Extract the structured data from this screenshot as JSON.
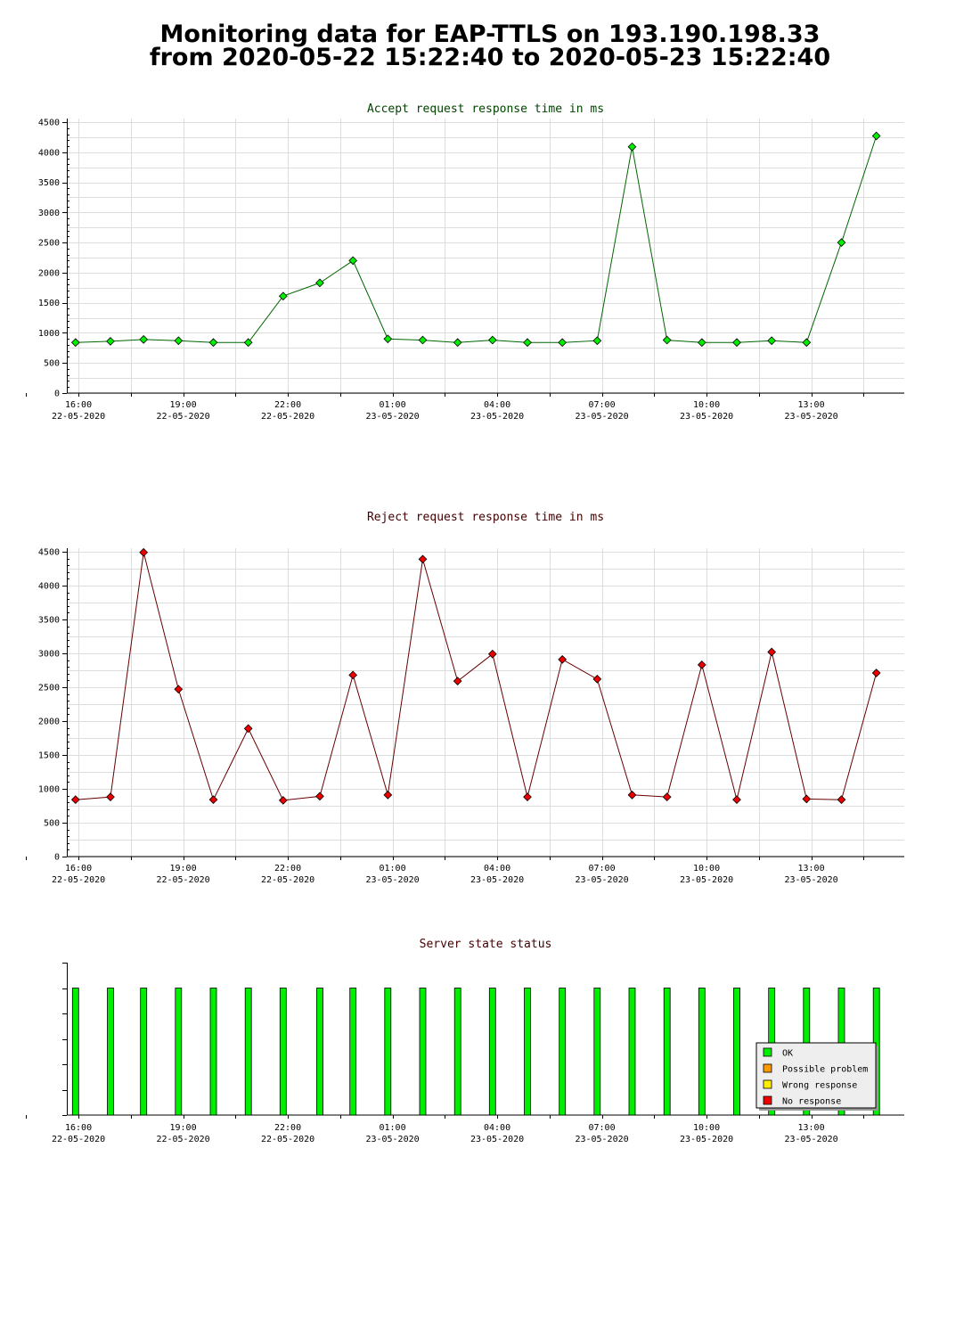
{
  "page": {
    "title_line1": "Monitoring data for EAP-TTLS on 193.190.198.33",
    "title_line2": "from 2020-05-22 15:22:40 to 2020-05-23 15:22:40"
  },
  "colors": {
    "accept_line": "#006600",
    "accept_marker": "#00ee00",
    "reject_line": "#660000",
    "reject_marker": "#ee0000",
    "status_ok": "#00ee00",
    "status_possible_problem": "#ff9900",
    "status_wrong_response": "#ffee00",
    "status_no_response": "#ee0000",
    "grid": "#dddddd",
    "accept_title": "#004400",
    "reject_title": "#440000",
    "status_title": "#440000"
  },
  "x_ticks": [
    {
      "time": "16:00",
      "date": "22-05-2020"
    },
    {
      "time": "19:00",
      "date": "22-05-2020"
    },
    {
      "time": "22:00",
      "date": "22-05-2020"
    },
    {
      "time": "01:00",
      "date": "23-05-2020"
    },
    {
      "time": "04:00",
      "date": "23-05-2020"
    },
    {
      "time": "07:00",
      "date": "23-05-2020"
    },
    {
      "time": "10:00",
      "date": "23-05-2020"
    },
    {
      "time": "13:00",
      "date": "23-05-2020"
    }
  ],
  "chart_data": [
    {
      "type": "line",
      "title": "Accept request response time in ms",
      "ylim": [
        0,
        4500
      ],
      "yticks": [
        0,
        500,
        1000,
        1500,
        2000,
        2500,
        3000,
        3500,
        4000,
        4500
      ],
      "x_start": "2020-05-22 15:40",
      "x_end": "2020-05-23 15:40",
      "grid": true,
      "x": [
        "2020-05-22 15:55",
        "2020-05-22 16:55",
        "2020-05-22 17:52",
        "2020-05-22 18:52",
        "2020-05-22 19:52",
        "2020-05-22 20:52",
        "2020-05-22 21:52",
        "2020-05-22 22:55",
        "2020-05-22 23:52",
        "2020-05-23 00:52",
        "2020-05-23 01:52",
        "2020-05-23 02:52",
        "2020-05-23 03:52",
        "2020-05-23 04:52",
        "2020-05-23 05:52",
        "2020-05-23 06:52",
        "2020-05-23 07:52",
        "2020-05-23 08:52",
        "2020-05-23 09:52",
        "2020-05-23 10:52",
        "2020-05-23 11:52",
        "2020-05-23 12:52",
        "2020-05-23 13:52",
        "2020-05-23 14:52"
      ],
      "values": [
        840,
        860,
        890,
        870,
        840,
        840,
        1610,
        1830,
        2200,
        900,
        880,
        840,
        880,
        840,
        840,
        870,
        4090,
        880,
        840,
        840,
        870,
        840,
        2500,
        4270
      ]
    },
    {
      "type": "line",
      "title": "Reject request response time in ms",
      "ylim": [
        0,
        4500
      ],
      "yticks": [
        0,
        500,
        1000,
        1500,
        2000,
        2500,
        3000,
        3500,
        4000,
        4500
      ],
      "x_start": "2020-05-22 15:40",
      "x_end": "2020-05-23 15:40",
      "grid": true,
      "x": [
        "2020-05-22 15:55",
        "2020-05-22 16:55",
        "2020-05-22 17:52",
        "2020-05-22 18:52",
        "2020-05-22 19:52",
        "2020-05-22 20:52",
        "2020-05-22 21:52",
        "2020-05-22 22:55",
        "2020-05-22 23:52",
        "2020-05-23 00:52",
        "2020-05-23 01:52",
        "2020-05-23 02:52",
        "2020-05-23 03:52",
        "2020-05-23 04:52",
        "2020-05-23 05:52",
        "2020-05-23 06:52",
        "2020-05-23 07:52",
        "2020-05-23 08:52",
        "2020-05-23 09:52",
        "2020-05-23 10:52",
        "2020-05-23 11:52",
        "2020-05-23 12:52",
        "2020-05-23 13:52",
        "2020-05-23 14:52"
      ],
      "values": [
        840,
        880,
        4490,
        2470,
        840,
        1890,
        830,
        890,
        2680,
        910,
        4390,
        2590,
        2990,
        880,
        2910,
        2620,
        910,
        880,
        2830,
        840,
        3020,
        850,
        840,
        2710
      ]
    },
    {
      "type": "bar",
      "title": "Server state status",
      "x_start": "2020-05-22 15:40",
      "x_end": "2020-05-23 15:40",
      "legend_position": "bottom-right",
      "legend": [
        "OK",
        "Possible problem",
        "Wrong response",
        "No response"
      ],
      "x": [
        "2020-05-22 15:55",
        "2020-05-22 16:55",
        "2020-05-22 17:52",
        "2020-05-22 18:52",
        "2020-05-22 19:52",
        "2020-05-22 20:52",
        "2020-05-22 21:52",
        "2020-05-22 22:55",
        "2020-05-22 23:52",
        "2020-05-23 00:52",
        "2020-05-23 01:52",
        "2020-05-23 02:52",
        "2020-05-23 03:52",
        "2020-05-23 04:52",
        "2020-05-23 05:52",
        "2020-05-23 06:52",
        "2020-05-23 07:52",
        "2020-05-23 08:52",
        "2020-05-23 09:52",
        "2020-05-23 10:52",
        "2020-05-23 11:52",
        "2020-05-23 12:52",
        "2020-05-23 13:52",
        "2020-05-23 14:52"
      ],
      "status": [
        "OK",
        "OK",
        "OK",
        "OK",
        "OK",
        "OK",
        "OK",
        "OK",
        "OK",
        "OK",
        "OK",
        "OK",
        "OK",
        "OK",
        "OK",
        "OK",
        "OK",
        "OK",
        "OK",
        "OK",
        "OK",
        "OK",
        "OK",
        "OK"
      ]
    }
  ]
}
